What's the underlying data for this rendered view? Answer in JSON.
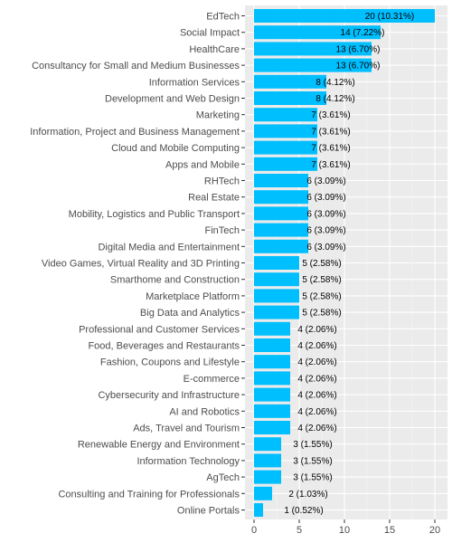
{
  "chart_data": {
    "type": "bar",
    "orientation": "horizontal",
    "title": "",
    "xlabel": "",
    "ylabel": "",
    "categories": [
      "EdTech",
      "Social Impact",
      "HealthCare",
      "Consultancy for Small and Medium Businesses",
      "Information Services",
      "Development and Web Design",
      "Marketing",
      "Information, Project and Business Management",
      "Cloud and Mobile Computing",
      "Apps and Mobile",
      "RHTech",
      "Real Estate",
      "Mobility, Logistics and Public Transport",
      "FinTech",
      "Digital Media and Entertainment",
      "Video Games, Virtual Reality and 3D Printing",
      "Smarthome and Construction",
      "Marketplace Platform",
      "Big Data and Analytics",
      "Professional and Customer Services",
      "Food, Beverages and Restaurants",
      "Fashion, Coupons and Lifestyle",
      "E-commerce",
      "Cybersecurity and Infrastructure",
      "AI and Robotics",
      "Ads, Travel and Tourism",
      "Renewable Energy and Environment",
      "Information Technology",
      "AgTech",
      "Consulting and Training for Professionals",
      "Online Portals"
    ],
    "values": [
      20,
      14,
      13,
      13,
      8,
      8,
      7,
      7,
      7,
      7,
      6,
      6,
      6,
      6,
      6,
      5,
      5,
      5,
      5,
      4,
      4,
      4,
      4,
      4,
      4,
      4,
      3,
      3,
      3,
      2,
      1
    ],
    "data_labels": [
      "20 (10.31%)",
      "14 (7.22%)",
      "13 (6.70%)",
      "13 (6.70%)",
      "8 (4.12%)",
      "8 (4.12%)",
      "7 (3.61%)",
      "7 (3.61%)",
      "7 (3.61%)",
      "7 (3.61%)",
      "6 (3.09%)",
      "6 (3.09%)",
      "6 (3.09%)",
      "6 (3.09%)",
      "6 (3.09%)",
      "5 (2.58%)",
      "5 (2.58%)",
      "5 (2.58%)",
      "5 (2.58%)",
      "4 (2.06%)",
      "4 (2.06%)",
      "4 (2.06%)",
      "4 (2.06%)",
      "4 (2.06%)",
      "4 (2.06%)",
      "4 (2.06%)",
      "3 (1.55%)",
      "3 (1.55%)",
      "3 (1.55%)",
      "2 (1.03%)",
      "1 (0.52%)"
    ],
    "xlim": [
      -1,
      21
    ],
    "xticks": [
      0,
      5,
      10,
      15,
      20
    ],
    "xtick_labels": [
      "0",
      "5",
      "10",
      "15",
      "20"
    ],
    "grid": true,
    "legend": "none",
    "colors": {
      "bar": "#00BFFF",
      "panel_background": "#EBEBEB",
      "gridline_major": "#FFFFFF",
      "gridline_minor": "#F5F5F5",
      "text": "#4D4D4D",
      "data_label_text": "#000000"
    }
  }
}
